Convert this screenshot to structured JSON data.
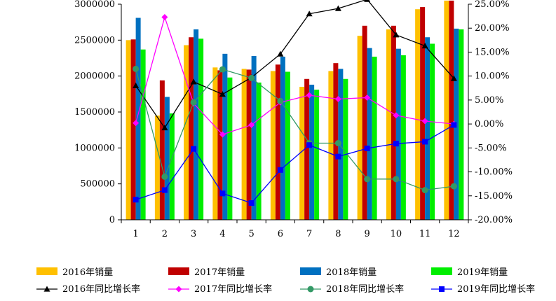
{
  "chart_data": {
    "type": "bar",
    "categories": [
      "1",
      "2",
      "3",
      "4",
      "5",
      "6",
      "7",
      "8",
      "9",
      "10",
      "11",
      "12"
    ],
    "ylim": [
      0,
      3000000
    ],
    "yticks": [
      0,
      500000,
      1000000,
      1500000,
      2000000,
      2500000,
      3000000
    ],
    "ytick_labels": [
      "0",
      "500000",
      "1000000",
      "1500000",
      "2000000",
      "2500000",
      "3000000"
    ],
    "y2lim": [
      -20,
      25
    ],
    "y2ticks": [
      -20,
      -15,
      -10,
      -5,
      0,
      5,
      10,
      15,
      20,
      25
    ],
    "y2tick_labels": [
      "-20.00%",
      "-15.00%",
      "-10.00%",
      "-5.00%",
      "0.00%",
      "5.00%",
      "10.00%",
      "15.00%",
      "20.00%",
      "25.00%"
    ],
    "y2unit": "%",
    "grid": false,
    "legend_position": "bottom",
    "bar_series": [
      {
        "name": "2016年销量",
        "color": "#FFC000",
        "values": [
          2500000,
          1450000,
          2430000,
          2120000,
          2100000,
          2070000,
          1850000,
          2070000,
          2560000,
          2650000,
          2930000,
          3050000
        ]
      },
      {
        "name": "2017年销量",
        "color": "#C00000",
        "values": [
          2510000,
          1940000,
          2540000,
          2080000,
          2090000,
          2160000,
          1960000,
          2180000,
          2700000,
          2700000,
          2960000,
          3050000
        ]
      },
      {
        "name": "2018年销量",
        "color": "#0070C0",
        "values": [
          2810000,
          1710000,
          2650000,
          2310000,
          2280000,
          2270000,
          1880000,
          2100000,
          2390000,
          2380000,
          2540000,
          2660000
        ]
      },
      {
        "name": "2019年销量",
        "color": "#00EE00",
        "values": [
          2370000,
          1480000,
          2520000,
          1980000,
          1910000,
          2060000,
          1810000,
          1960000,
          2270000,
          2290000,
          2450000,
          2650000
        ]
      }
    ],
    "line_series": [
      {
        "name": "2016年同比增长率",
        "color": "#000000",
        "marker": "triangle",
        "values": [
          8.0,
          -0.8,
          8.8,
          6.2,
          9.7,
          14.6,
          23.0,
          24.1,
          26.0,
          18.6,
          16.3,
          9.5
        ]
      },
      {
        "name": "2017年同比增长率",
        "color": "#FF00FF",
        "marker": "diamond",
        "values": [
          0.2,
          22.3,
          4.3,
          -2.2,
          -0.2,
          4.5,
          6.0,
          5.2,
          5.5,
          1.8,
          0.6,
          0.0
        ]
      },
      {
        "name": "2018年同比增长率",
        "color": "#339966",
        "marker": "circle",
        "values": [
          11.5,
          -11.0,
          4.5,
          11.4,
          9.6,
          4.8,
          -4.0,
          -4.0,
          -11.5,
          -11.5,
          -13.8,
          -13.0
        ]
      },
      {
        "name": "2019年同比增长率",
        "color": "#0000FF",
        "marker": "square",
        "values": [
          -15.8,
          -13.8,
          -5.2,
          -14.5,
          -16.5,
          -9.6,
          -4.4,
          -6.8,
          -5.1,
          -4.1,
          -3.7,
          -0.2
        ]
      }
    ]
  }
}
